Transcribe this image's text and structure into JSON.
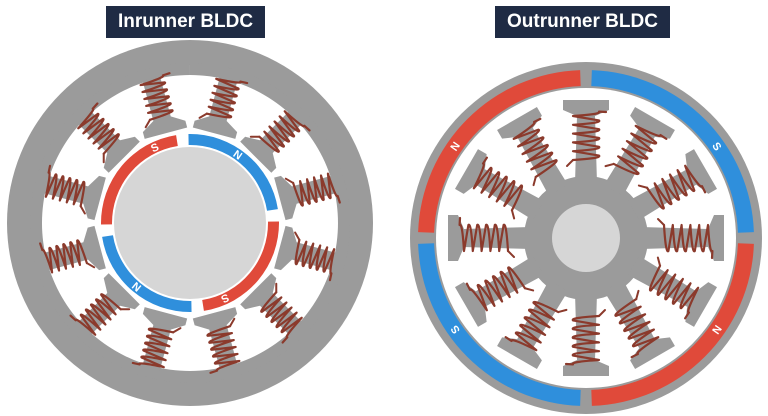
{
  "titles": {
    "inrunner": "Inrunner BLDC",
    "outrunner": "Outrunner BLDC"
  },
  "pole_labels": {
    "north": "N",
    "south": "S"
  },
  "colors": {
    "title_bg": "#1f2b44",
    "title_text": "#ffffff",
    "stator_gray": "#9b9b9b",
    "gap_white": "#ffffff",
    "hub_light": "#d6d6d6",
    "coil_wire": "#8b3a2c",
    "magnet_south": "#e04a3a",
    "magnet_north": "#2f8fdc"
  },
  "inrunner": {
    "stator_teeth": 12,
    "rotor_magnets": [
      {
        "pole": "S",
        "color": "magnet_south"
      },
      {
        "pole": "N",
        "color": "magnet_north"
      },
      {
        "pole": "S",
        "color": "magnet_south"
      },
      {
        "pole": "N",
        "color": "magnet_north"
      }
    ]
  },
  "outrunner": {
    "stator_teeth": 12,
    "rotor_magnets": [
      {
        "pole": "S",
        "color": "magnet_south"
      },
      {
        "pole": "N",
        "color": "magnet_north"
      },
      {
        "pole": "S",
        "color": "magnet_south"
      },
      {
        "pole": "N",
        "color": "magnet_north"
      }
    ]
  }
}
